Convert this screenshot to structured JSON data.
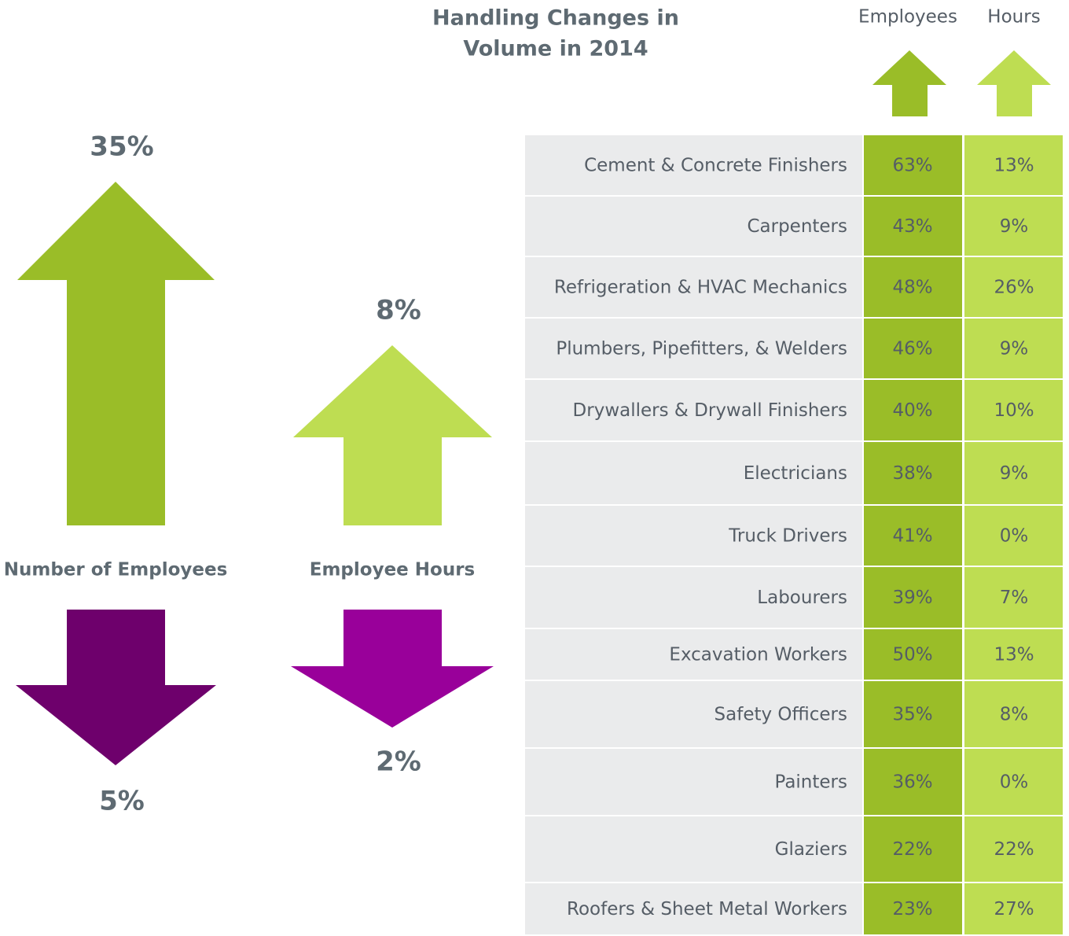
{
  "header": {
    "title": "Handling Changes in Volume in 2014",
    "columns": [
      "Employees",
      "Hours"
    ]
  },
  "summary": {
    "employees": {
      "label": "Number of Employees",
      "up": "35%",
      "down": "5%"
    },
    "hours": {
      "label": "Employee Hours",
      "up": "8%",
      "down": "2%"
    }
  },
  "table": {
    "rows": [
      [
        "Cement & Concrete Finishers",
        "63%",
        "13%"
      ],
      [
        "Carpenters",
        "43%",
        "9%"
      ],
      [
        "Refrigeration & HVAC Mechanics",
        "48%",
        "26%"
      ],
      [
        "Plumbers, Pipefitters, & Welders",
        "46%",
        "9%"
      ],
      [
        "Drywallers & Drywall Finishers",
        "40%",
        "10%"
      ],
      [
        "Electricians",
        "38%",
        "9%"
      ],
      [
        "Truck Drivers",
        "41%",
        "0%"
      ],
      [
        "Labourers",
        "39%",
        "7%"
      ],
      [
        "Excavation Workers",
        "50%",
        "13%"
      ],
      [
        "Safety Officers",
        "35%",
        "8%"
      ],
      [
        "Painters",
        "36%",
        "0%"
      ],
      [
        "Glaziers",
        "22%",
        "22%"
      ],
      [
        "Roofers & Sheet Metal Workers",
        "23%",
        "27%"
      ]
    ]
  }
}
